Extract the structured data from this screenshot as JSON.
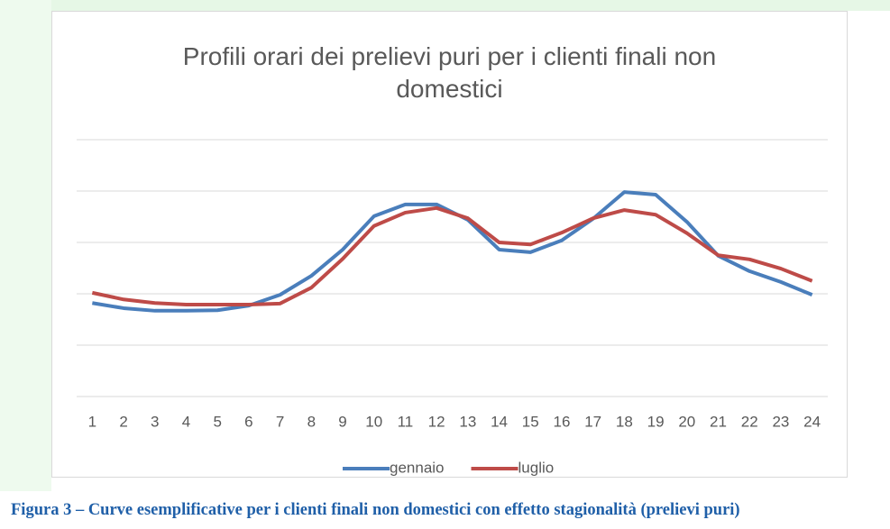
{
  "chart_data": {
    "type": "line",
    "title": "Profili orari dei prelievi puri per i clienti finali non\ndomestici",
    "categories": [
      1,
      2,
      3,
      4,
      5,
      6,
      7,
      8,
      9,
      10,
      11,
      12,
      13,
      14,
      15,
      16,
      17,
      18,
      19,
      20,
      21,
      22,
      23,
      24
    ],
    "series": [
      {
        "name": "gennaio",
        "color": "#4a7ebb",
        "values": [
          1.82,
          1.72,
          1.67,
          1.67,
          1.68,
          1.77,
          1.98,
          2.35,
          2.86,
          3.51,
          3.74,
          3.74,
          3.44,
          2.86,
          2.81,
          3.04,
          3.46,
          3.98,
          3.93,
          3.4,
          2.74,
          2.44,
          2.23,
          1.98
        ]
      },
      {
        "name": "luglio",
        "color": "#be4b48",
        "values": [
          2.02,
          1.89,
          1.82,
          1.79,
          1.79,
          1.79,
          1.81,
          2.12,
          2.68,
          3.32,
          3.58,
          3.67,
          3.47,
          3.0,
          2.96,
          3.19,
          3.47,
          3.63,
          3.54,
          3.18,
          2.75,
          2.67,
          2.49,
          2.25
        ]
      }
    ],
    "ylim": [
      0,
      5
    ],
    "yticks": [
      0,
      1,
      2,
      3,
      4,
      5
    ],
    "grid": true,
    "show_ytick_labels": false,
    "legend": "bottom"
  },
  "caption": "Figura 3 – Curve esemplificative per i clienti finali non domestici con effetto stagionalità (prelievi puri)"
}
